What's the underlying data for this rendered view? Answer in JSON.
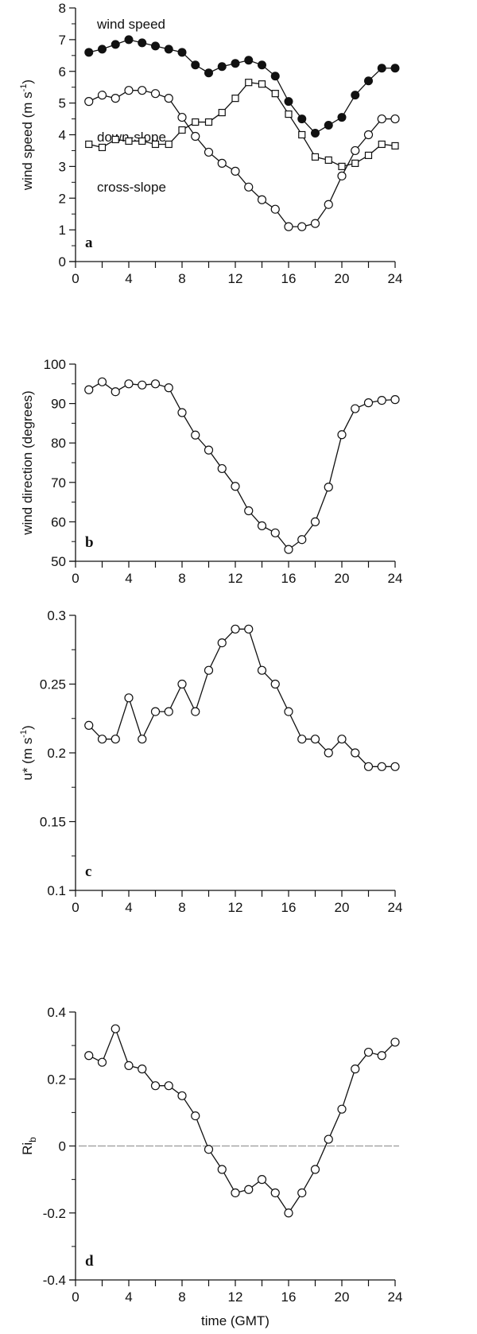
{
  "chart_data": [
    {
      "type": "line",
      "panel_letter": "a",
      "ylabel": "wind speed (m s",
      "ylabel_sup": "-1",
      "ylabel_close": ")",
      "ylim": [
        0,
        8
      ],
      "yticks": [
        "0",
        "1",
        "2",
        "3",
        "4",
        "5",
        "6",
        "7",
        "8"
      ],
      "xlim": [
        0,
        24
      ],
      "xticks": [
        "0",
        "4",
        "8",
        "12",
        "16",
        "20",
        "24"
      ],
      "x": [
        1,
        2,
        3,
        4,
        5,
        6,
        7,
        8,
        9,
        10,
        11,
        12,
        13,
        14,
        15,
        16,
        17,
        18,
        19,
        20,
        21,
        22,
        23,
        24
      ],
      "series": [
        {
          "name": "wind speed",
          "marker": "filled-circle",
          "values": [
            6.6,
            6.7,
            6.85,
            7.0,
            6.9,
            6.8,
            6.7,
            6.6,
            6.2,
            5.95,
            6.15,
            6.25,
            6.35,
            6.2,
            5.85,
            5.05,
            4.5,
            4.05,
            4.3,
            4.55,
            5.25,
            5.7,
            6.1,
            6.1
          ]
        },
        {
          "name": "down-slope",
          "marker": "open-circle",
          "values": [
            5.05,
            5.25,
            5.15,
            5.4,
            5.4,
            5.3,
            5.15,
            4.55,
            3.95,
            3.45,
            3.1,
            2.85,
            2.35,
            1.95,
            1.65,
            1.1,
            1.1,
            1.2,
            1.8,
            2.7,
            3.5,
            4.0,
            4.5,
            4.5
          ]
        },
        {
          "name": "cross-slope",
          "marker": "open-square",
          "values": [
            3.7,
            3.6,
            3.85,
            3.8,
            3.8,
            3.7,
            3.7,
            4.15,
            4.4,
            4.4,
            4.7,
            5.15,
            5.65,
            5.6,
            5.3,
            4.65,
            4.0,
            3.3,
            3.2,
            3.0,
            3.1,
            3.35,
            3.7,
            3.65
          ]
        }
      ]
    },
    {
      "type": "line",
      "panel_letter": "b",
      "ylabel": "wind direction (degrees)",
      "ylim": [
        50,
        100
      ],
      "yticks": [
        "50",
        "60",
        "70",
        "80",
        "90",
        "100"
      ],
      "xlim": [
        0,
        24
      ],
      "xticks": [
        "0",
        "4",
        "8",
        "12",
        "16",
        "20",
        "24"
      ],
      "x": [
        1,
        2,
        3,
        4,
        5,
        6,
        7,
        8,
        9,
        10,
        11,
        12,
        13,
        14,
        15,
        16,
        17,
        18,
        19,
        20,
        21,
        22,
        23,
        24
      ],
      "series": [
        {
          "marker": "open-circle",
          "values": [
            93.5,
            95.5,
            93,
            95,
            94.7,
            95,
            94,
            87.7,
            82,
            78.2,
            73.5,
            69,
            62.8,
            59,
            57.2,
            53,
            55.5,
            60,
            68.8,
            82.1,
            88.7,
            90.2,
            90.8,
            91
          ]
        }
      ]
    },
    {
      "type": "line",
      "panel_letter": "c",
      "ylabel": "u* (m s",
      "ylabel_sup": "-1",
      "ylabel_close": ")",
      "ylim": [
        0.1,
        0.3
      ],
      "yticks": [
        "0.1",
        "0.15",
        "0.2",
        "0.25",
        "0.3"
      ],
      "xlim": [
        0,
        24
      ],
      "xticks": [
        "0",
        "4",
        "8",
        "12",
        "16",
        "20",
        "24"
      ],
      "x": [
        1,
        2,
        3,
        4,
        5,
        6,
        7,
        8,
        9,
        10,
        11,
        12,
        13,
        14,
        15,
        16,
        17,
        18,
        19,
        20,
        21,
        22,
        23,
        24
      ],
      "series": [
        {
          "marker": "open-circle",
          "values": [
            0.22,
            0.21,
            0.21,
            0.24,
            0.21,
            0.23,
            0.23,
            0.25,
            0.23,
            0.26,
            0.28,
            0.29,
            0.29,
            0.26,
            0.25,
            0.23,
            0.21,
            0.21,
            0.2,
            0.21,
            0.2,
            0.19,
            0.19,
            0.19
          ]
        }
      ]
    },
    {
      "type": "line",
      "panel_letter": "d",
      "ylabel": "Ri",
      "ylabel_sub": "b",
      "xlabel": "time (GMT)",
      "ylim": [
        -0.4,
        0.4
      ],
      "yticks": [
        "-0.4",
        "-0.2",
        "0",
        "0.2",
        "0.4"
      ],
      "xlim": [
        0,
        24
      ],
      "xticks": [
        "0",
        "4",
        "8",
        "12",
        "16",
        "20",
        "24"
      ],
      "reference_line": 0,
      "x": [
        1,
        2,
        3,
        4,
        5,
        6,
        7,
        8,
        9,
        10,
        11,
        12,
        13,
        14,
        15,
        16,
        17,
        18,
        19,
        20,
        21,
        22,
        23,
        24
      ],
      "series": [
        {
          "marker": "open-circle",
          "values": [
            0.27,
            0.25,
            0.35,
            0.24,
            0.23,
            0.18,
            0.18,
            0.15,
            0.09,
            -0.01,
            -0.07,
            -0.14,
            -0.13,
            -0.1,
            -0.14,
            -0.2,
            -0.14,
            -0.07,
            0.02,
            0.11,
            0.23,
            0.28,
            0.27,
            0.31
          ]
        }
      ]
    }
  ]
}
